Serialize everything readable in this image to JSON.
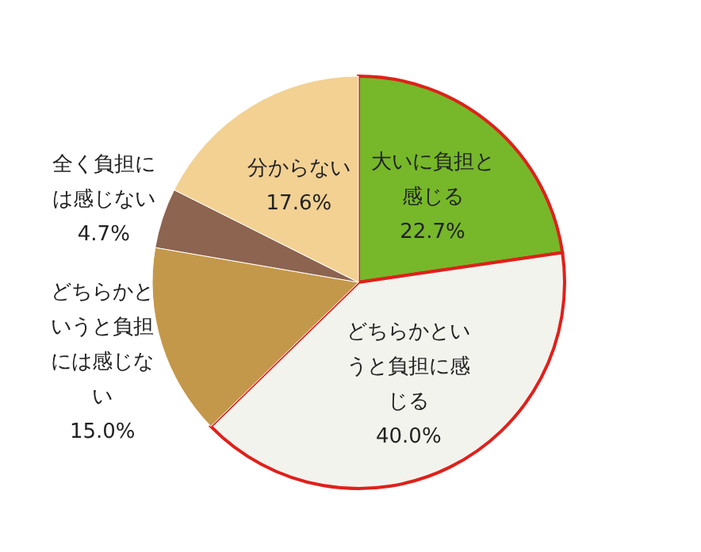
{
  "chart_data": {
    "type": "pie",
    "categories": [
      "大いに負担と感じる",
      "どちらかというと負担に感じる",
      "どちらかというと負担には感じない",
      "全く負担には感じない",
      "分からない"
    ],
    "values": [
      22.7,
      40.0,
      15.0,
      4.7,
      17.6
    ],
    "value_labels": [
      "22.7%",
      "40.0%",
      "15.0%",
      "4.7%",
      "17.6%"
    ],
    "colors": [
      "#76b82a",
      "#f3f3ee",
      "#c4984a",
      "#8c6450",
      "#f2d193"
    ],
    "legend": false
  }
}
